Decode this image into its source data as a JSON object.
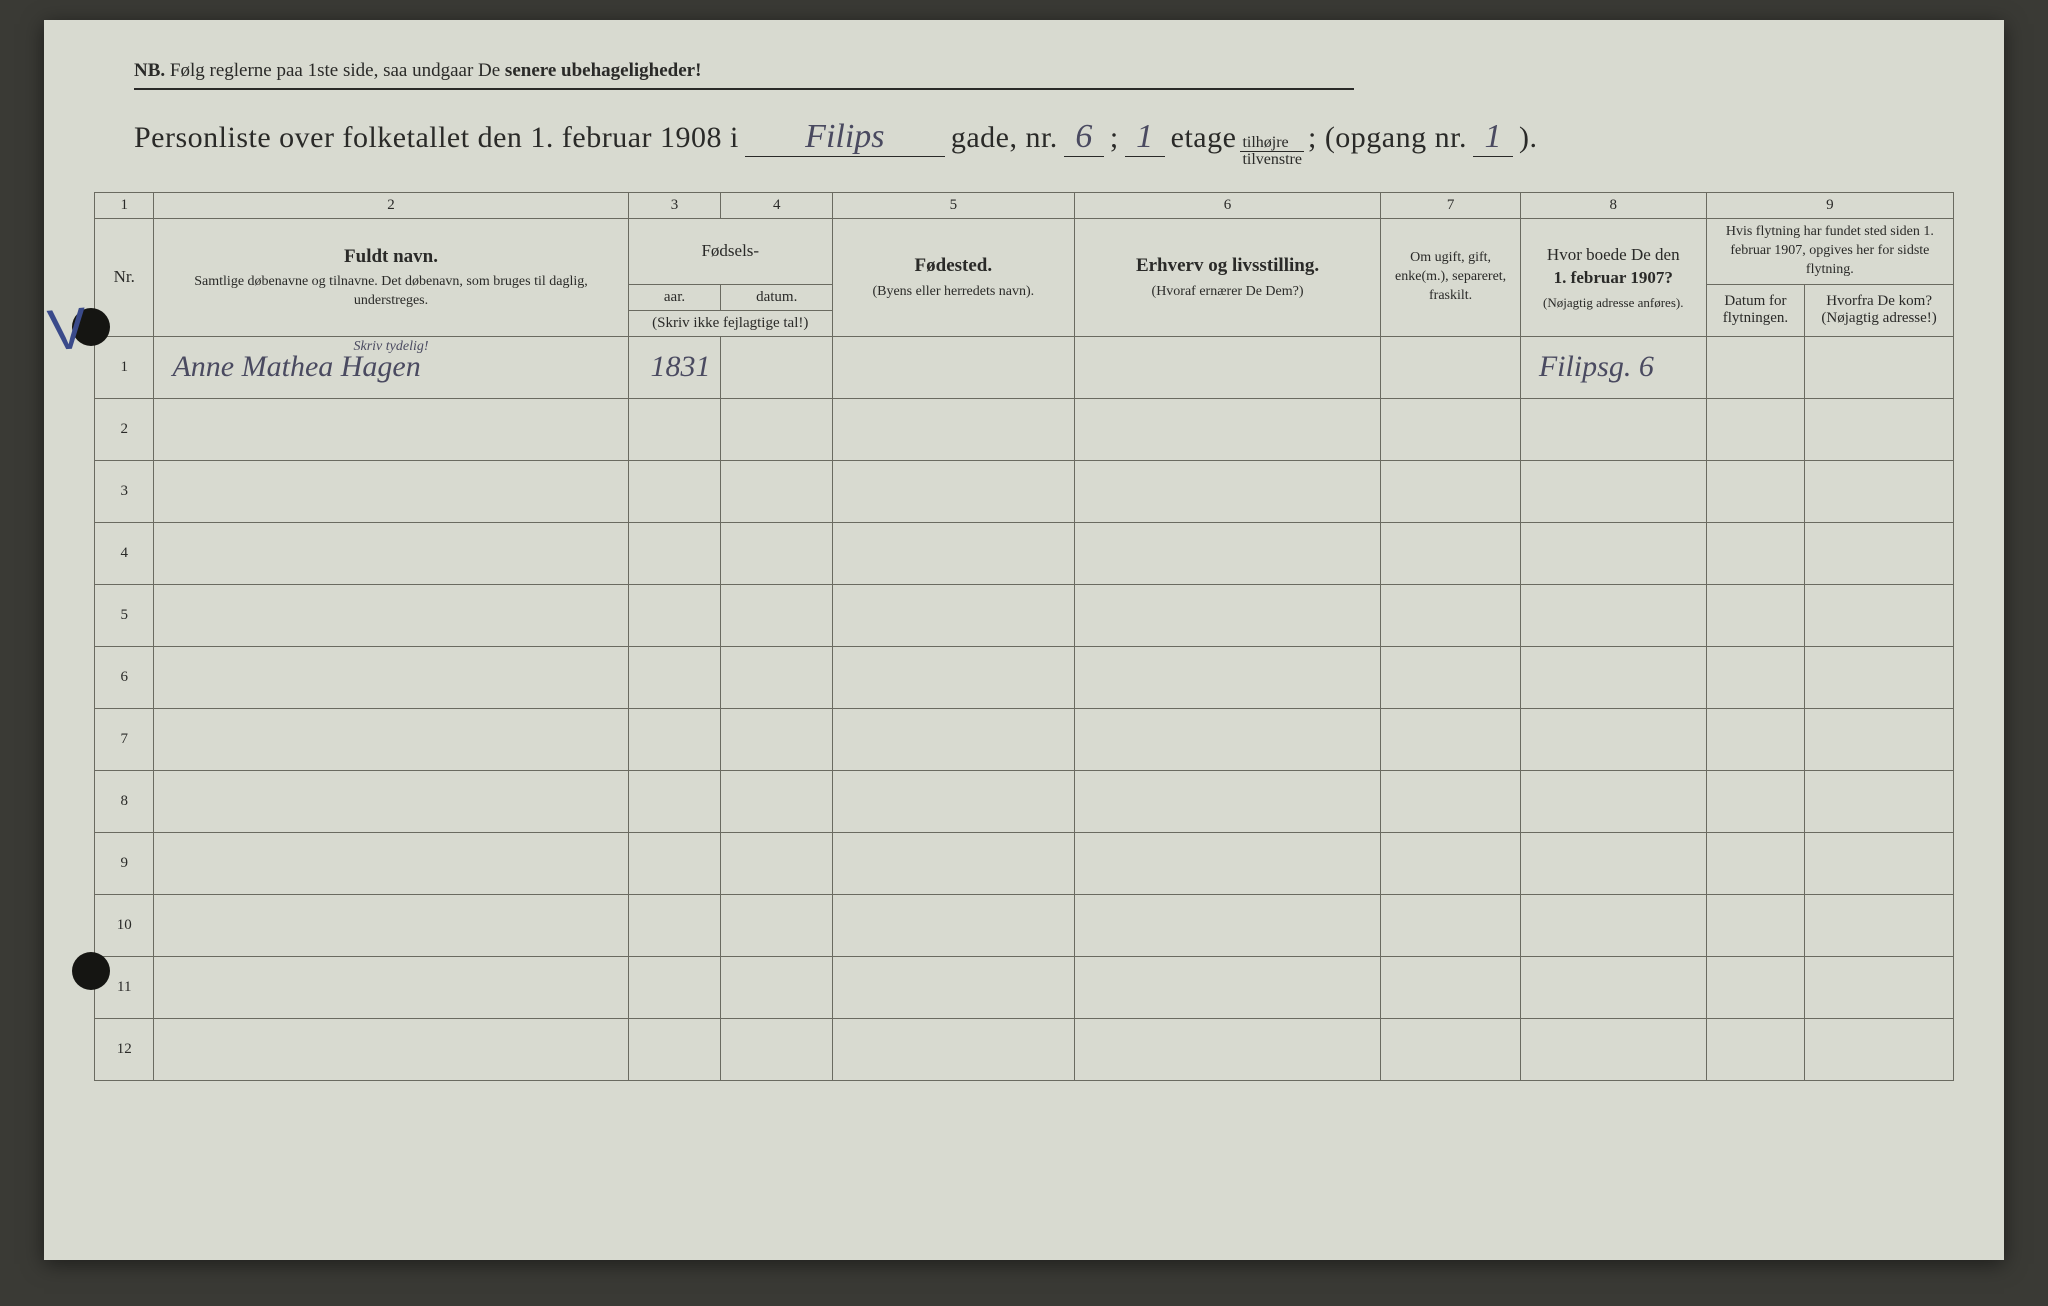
{
  "nb": {
    "prefix": "NB.",
    "text_a": "Følg reglerne paa 1ste side, saa undgaar De",
    "text_b": "senere ubehageligheder!"
  },
  "title": {
    "part1": "Personliste over folketallet den 1. februar 1908 i",
    "street": "Filips",
    "part2": "gade, nr.",
    "house_nr": "6",
    "semicolon": ";",
    "floor_handwritten": "1",
    "part3": "etage",
    "fraction_top": "tilhøjre",
    "fraction_bot": "tilvenstre",
    "part4": "; (opgang nr.",
    "entrance": "1",
    "part5": ")."
  },
  "colnums": [
    "1",
    "2",
    "3",
    "4",
    "5",
    "6",
    "7",
    "8",
    "9"
  ],
  "headers": {
    "nr": "Nr.",
    "col2_main": "Fuldt navn.",
    "col2_sub": "Samtlige døbenavne og tilnavne. Det døbenavn, som bruges til daglig, understreges.",
    "col34_top": "Fødsels-",
    "col3": "aar.",
    "col4": "datum.",
    "col34_note": "(Skriv ikke fejlagtige tal!)",
    "col5_main": "Fødested.",
    "col5_sub": "(Byens eller herredets navn).",
    "col6_main": "Erhverv og livsstilling.",
    "col6_sub": "(Hvoraf ernærer De Dem?)",
    "col7": "Om ugift, gift, enke(m.), separeret, fraskilt.",
    "col8_a": "Hvor boede De den",
    "col8_b": "1. februar 1907?",
    "col8_sub": "(Nøjagtig adresse anføres).",
    "col9_top": "Hvis flytning har fundet sted siden 1. februar 1907, opgives her for sidste flytning.",
    "col9a": "Datum for flytningen.",
    "col9b_a": "Hvorfra De kom?",
    "col9b_b": "(Nøjagtig adresse!)"
  },
  "skriv_tydelig": "Skriv tydelig!",
  "rows": [
    {
      "nr": "1",
      "name": "Anne Mathea Hagen",
      "year": "1831",
      "date": "",
      "birthplace": "",
      "occupation": "",
      "status": "",
      "addr1907": "Filipsg. 6",
      "move_date": "",
      "move_from": ""
    },
    {
      "nr": "2"
    },
    {
      "nr": "3"
    },
    {
      "nr": "4"
    },
    {
      "nr": "5"
    },
    {
      "nr": "6"
    },
    {
      "nr": "7"
    },
    {
      "nr": "8"
    },
    {
      "nr": "9"
    },
    {
      "nr": "10"
    },
    {
      "nr": "11"
    },
    {
      "nr": "12"
    }
  ],
  "colors": {
    "paper": "#d8dad0",
    "ink": "#2a2a28",
    "handwriting": "#4a4a60",
    "border": "#6a6a60"
  }
}
